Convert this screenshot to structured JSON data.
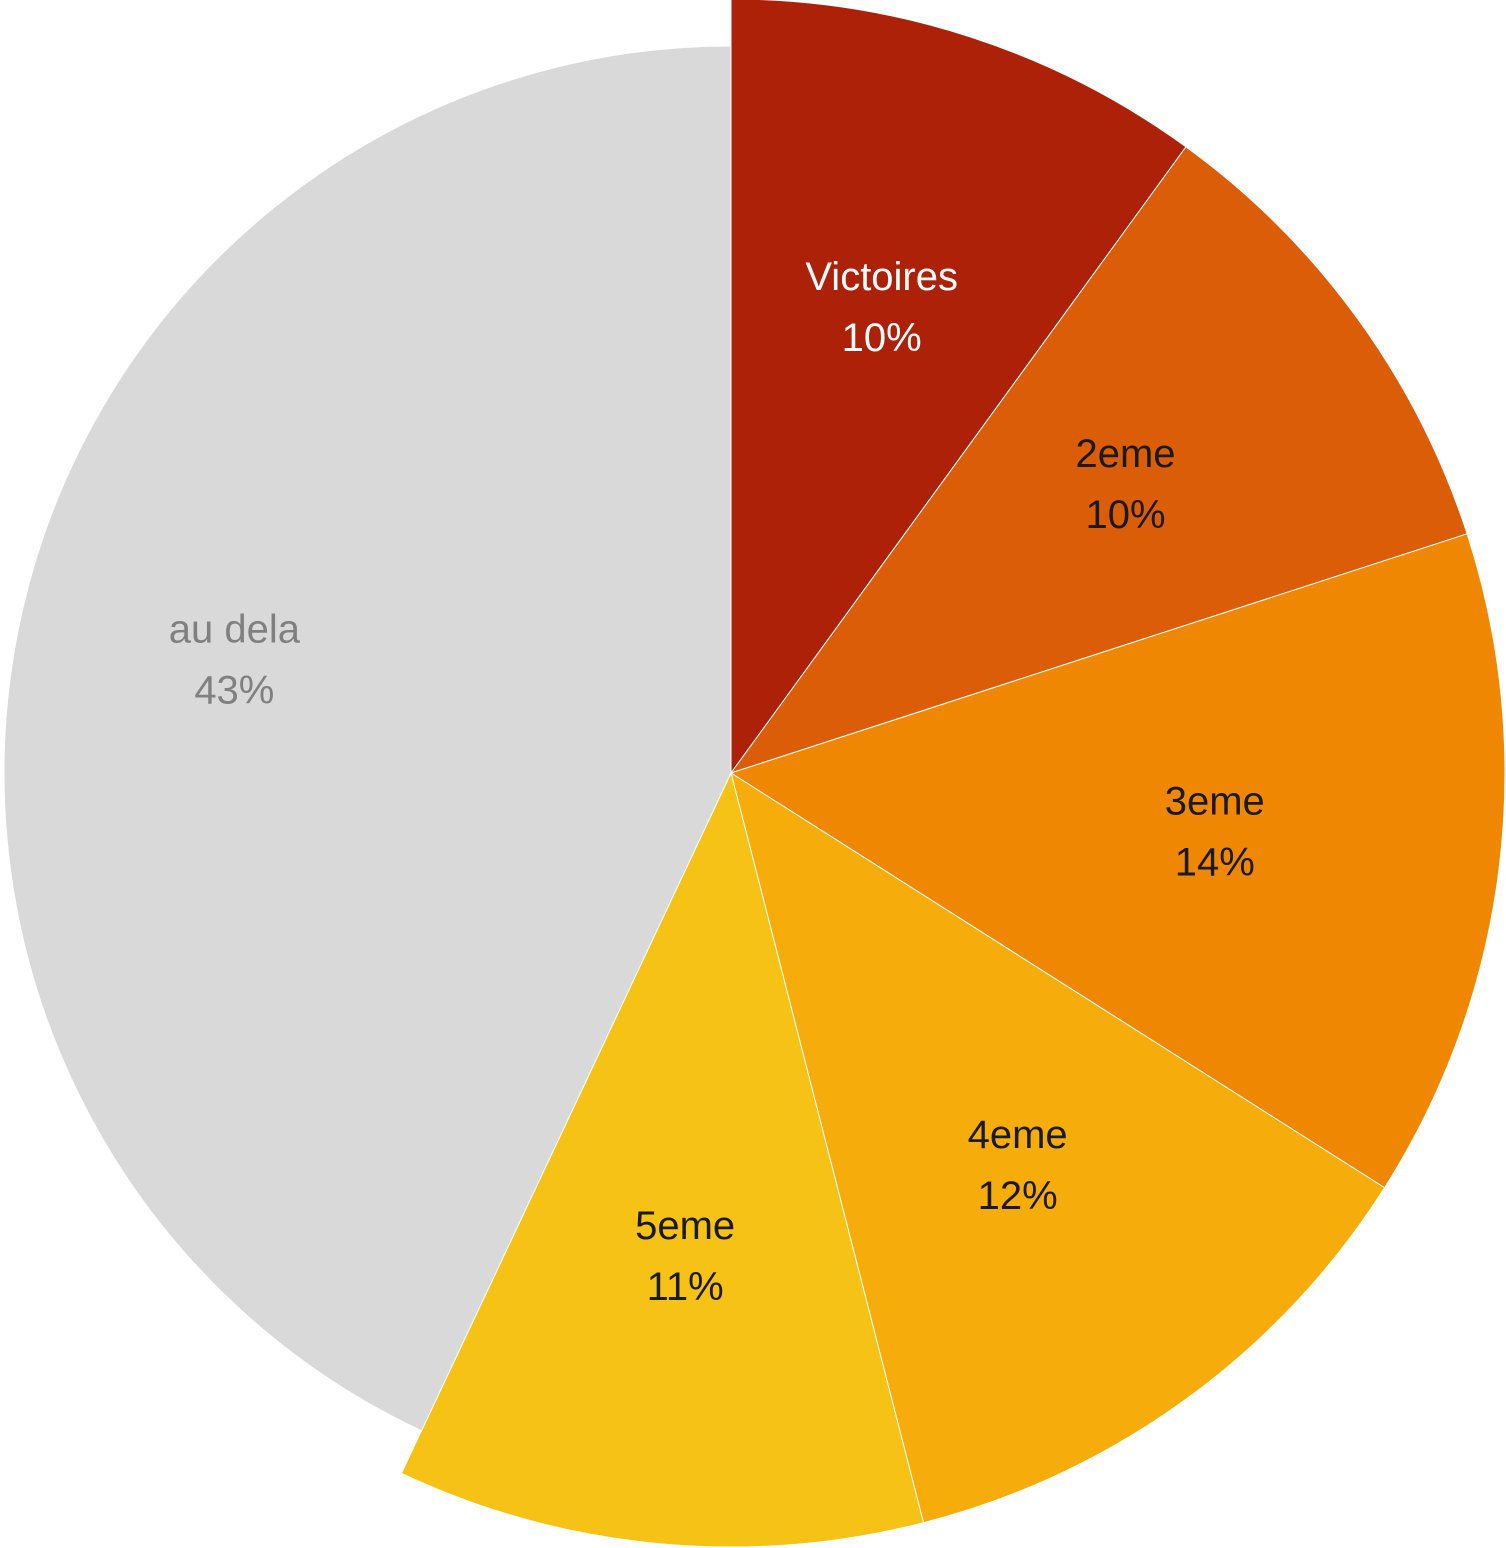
{
  "chart_data": {
    "type": "pie",
    "categories": [
      "Victoires",
      "2eme",
      "3eme",
      "4eme",
      "5eme",
      "au dela"
    ],
    "values": [
      10,
      10,
      14,
      12,
      11,
      43
    ],
    "value_labels": [
      "10%",
      "10%",
      "14%",
      "12%",
      "11%",
      "43%"
    ],
    "colors": [
      "#ad2109",
      "#db5d08",
      "#ef8703",
      "#f6ac0b",
      "#f5c215",
      "#d9d9d9"
    ]
  }
}
